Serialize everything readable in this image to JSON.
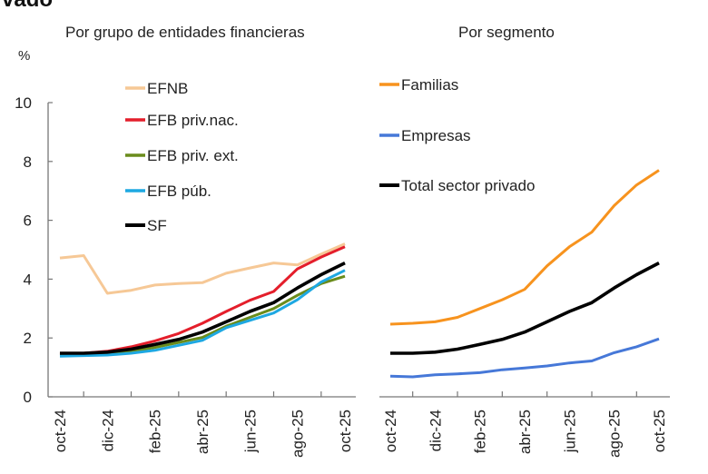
{
  "title_fragment": "vado",
  "chart_data": [
    {
      "type": "line",
      "title": "Por grupo de entidades financieras",
      "ylabel": "%",
      "ylim": [
        0,
        10
      ],
      "yticks": [
        0,
        2,
        4,
        6,
        8,
        10
      ],
      "x": [
        "oct-24",
        "nov-24",
        "dic-24",
        "ene-25",
        "feb-25",
        "mar-25",
        "abr-25",
        "may-25",
        "jun-25",
        "jul-25",
        "ago-25",
        "sep-25",
        "oct-25"
      ],
      "xtick_labels": [
        "oct-24",
        "dic-24",
        "feb-25",
        "abr-25",
        "jun-25",
        "ago-25",
        "oct-25"
      ],
      "legend_position": "top-left",
      "grid": false,
      "series": [
        {
          "name": "EFNB",
          "color": "#f6c896",
          "values": [
            4.72,
            4.8,
            3.52,
            3.62,
            3.8,
            3.85,
            3.88,
            4.2,
            4.38,
            4.55,
            4.48,
            4.85,
            5.2
          ]
        },
        {
          "name": "EFB priv.nac.",
          "color": "#e41e2b",
          "values": [
            1.45,
            1.48,
            1.55,
            1.7,
            1.9,
            2.15,
            2.5,
            2.9,
            3.28,
            3.58,
            4.35,
            4.75,
            5.1
          ]
        },
        {
          "name": "EFB priv. ext.",
          "color": "#6a8c1c",
          "values": [
            1.42,
            1.45,
            1.48,
            1.55,
            1.68,
            1.85,
            2.02,
            2.4,
            2.7,
            3.0,
            3.45,
            3.85,
            4.1
          ]
        },
        {
          "name": "EFB púb.",
          "color": "#1ea8e2",
          "values": [
            1.38,
            1.4,
            1.42,
            1.48,
            1.58,
            1.75,
            1.92,
            2.35,
            2.6,
            2.85,
            3.3,
            3.9,
            4.3
          ]
        },
        {
          "name": "SF",
          "color": "#000000",
          "values": [
            1.48,
            1.48,
            1.52,
            1.62,
            1.78,
            1.95,
            2.2,
            2.55,
            2.9,
            3.2,
            3.7,
            4.15,
            4.55
          ]
        }
      ]
    },
    {
      "type": "line",
      "title": "Por segmento",
      "ylim": [
        0,
        10
      ],
      "x": [
        "oct-24",
        "nov-24",
        "dic-24",
        "ene-25",
        "feb-25",
        "mar-25",
        "abr-25",
        "may-25",
        "jun-25",
        "jul-25",
        "ago-25",
        "sep-25",
        "oct-25"
      ],
      "xtick_labels": [
        "oct-24",
        "dic-24",
        "feb-25",
        "abr-25",
        "jun-25",
        "ago-25",
        "oct-25"
      ],
      "legend_position": "top-left",
      "grid": false,
      "series": [
        {
          "name": "Familias",
          "color": "#f7931e",
          "values": [
            2.47,
            2.5,
            2.55,
            2.7,
            3.0,
            3.3,
            3.65,
            4.45,
            5.1,
            5.6,
            6.5,
            7.2,
            7.7
          ]
        },
        {
          "name": "Empresas",
          "color": "#4678d8",
          "values": [
            0.7,
            0.68,
            0.75,
            0.78,
            0.82,
            0.92,
            0.98,
            1.05,
            1.15,
            1.22,
            1.5,
            1.7,
            1.97
          ]
        },
        {
          "name": "Total sector privado",
          "color": "#000000",
          "values": [
            1.48,
            1.48,
            1.52,
            1.62,
            1.78,
            1.95,
            2.2,
            2.55,
            2.9,
            3.2,
            3.7,
            4.15,
            4.55
          ]
        }
      ]
    }
  ]
}
